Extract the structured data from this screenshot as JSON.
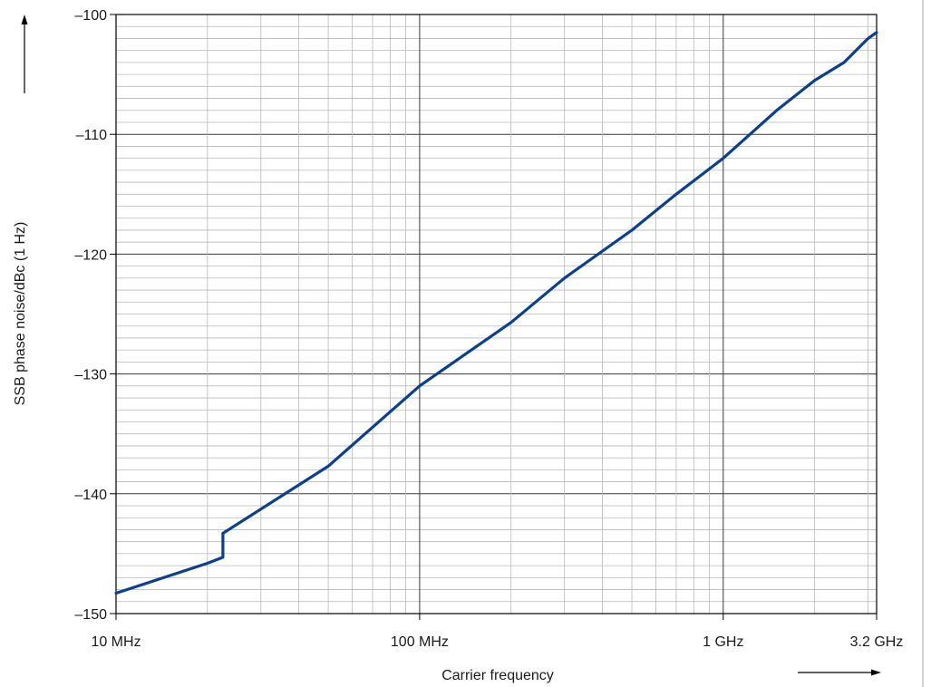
{
  "chart_data": {
    "type": "line",
    "xlabel": "Carrier frequency",
    "ylabel": "SSB phase noise/dBc (1 Hz)",
    "x_scale": "log",
    "x_unit": "Hz",
    "xlim": [
      10000000,
      3200000000
    ],
    "ylim": [
      -150,
      -100
    ],
    "x_ticks": [
      {
        "value": 10000000,
        "label": "10 MHz"
      },
      {
        "value": 100000000,
        "label": "100 MHz"
      },
      {
        "value": 1000000000,
        "label": "1 GHz"
      },
      {
        "value": 3200000000,
        "label": "3.2 GHz"
      }
    ],
    "y_ticks": [
      {
        "value": -100,
        "label": "–100"
      },
      {
        "value": -110,
        "label": "–110"
      },
      {
        "value": -120,
        "label": "–120"
      },
      {
        "value": -130,
        "label": "–130"
      },
      {
        "value": -140,
        "label": "–140"
      },
      {
        "value": -150,
        "label": "–150"
      }
    ],
    "grid": true,
    "series": [
      {
        "color": "#0b3f8f",
        "points": [
          [
            10000000,
            -148.3
          ],
          [
            20000000,
            -145.8
          ],
          [
            22500000,
            -145.3
          ],
          [
            22500000,
            -143.3
          ],
          [
            50000000,
            -137.7
          ],
          [
            100000000,
            -131.0
          ],
          [
            200000000,
            -125.7
          ],
          [
            300000000,
            -122.0
          ],
          [
            500000000,
            -118.0
          ],
          [
            700000000,
            -115.0
          ],
          [
            1000000000,
            -112.0
          ],
          [
            1500000000,
            -108.0
          ],
          [
            2000000000,
            -105.5
          ],
          [
            2500000000,
            -104.0
          ],
          [
            3000000000,
            -102.0
          ],
          [
            3200000000,
            -101.5
          ]
        ]
      }
    ]
  }
}
